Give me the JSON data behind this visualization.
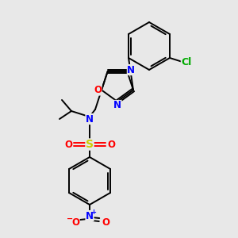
{
  "bg_color": "#e8e8e8",
  "bond_color": "#000000",
  "figsize": [
    3.0,
    3.0
  ],
  "dpi": 100,
  "lw": 1.4,
  "atom_colors": {
    "N": "#0000ff",
    "O": "#ff0000",
    "S": "#cccc00",
    "Cl": "#00aa00",
    "C": "#000000"
  },
  "font_size": 8.5
}
